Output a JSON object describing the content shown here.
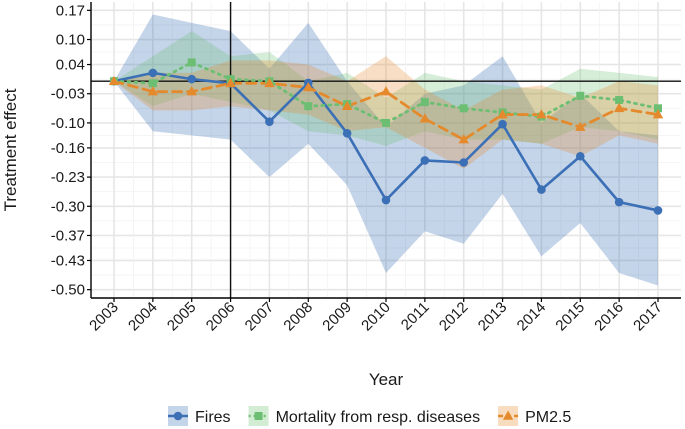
{
  "chart_data": {
    "type": "line",
    "title": "",
    "xlabel": "Year",
    "ylabel": "Treatment effect",
    "categories": [
      "2003",
      "2004",
      "2005",
      "2006",
      "2007",
      "2008",
      "2009",
      "2010",
      "2011",
      "2012",
      "2013",
      "2014",
      "2015",
      "2016",
      "2017"
    ],
    "yticks": [
      "0.17",
      "0.10",
      "0.04",
      "-0.03",
      "-0.10",
      "-0.16",
      "-0.23",
      "-0.30",
      "-0.37",
      "-0.43",
      "-0.50"
    ],
    "ylim": [
      -0.52,
      0.19
    ],
    "reference_hline": 0.0,
    "reference_vline": "2006",
    "grid": true,
    "legend_position": "bottom",
    "series": [
      {
        "name": "Fires",
        "color": "#3b6fb6",
        "line_style": "solid",
        "marker": "circle",
        "values": [
          0.0,
          0.02,
          0.005,
          -0.005,
          -0.097,
          -0.004,
          -0.125,
          -0.285,
          -0.19,
          -0.195,
          -0.103,
          -0.26,
          -0.18,
          -0.29,
          -0.31
        ],
        "ci_lower": [
          0.0,
          -0.12,
          -0.13,
          -0.14,
          -0.23,
          -0.15,
          -0.25,
          -0.46,
          -0.36,
          -0.39,
          -0.27,
          -0.42,
          -0.34,
          -0.46,
          -0.49
        ],
        "ci_upper": [
          0.0,
          0.16,
          0.14,
          0.12,
          0.03,
          0.14,
          0.0,
          -0.11,
          -0.03,
          -0.01,
          0.06,
          -0.1,
          -0.03,
          -0.12,
          -0.13
        ]
      },
      {
        "name": "Mortality from resp. diseases",
        "color": "#6cbf72",
        "line_style": "dotted",
        "marker": "square",
        "values": [
          0.0,
          -0.005,
          0.045,
          0.005,
          0.0,
          -0.06,
          -0.055,
          -0.1,
          -0.05,
          -0.065,
          -0.075,
          -0.085,
          -0.035,
          -0.045,
          -0.065
        ],
        "ci_lower": [
          0.0,
          -0.06,
          -0.03,
          -0.05,
          -0.07,
          -0.12,
          -0.13,
          -0.155,
          -0.12,
          -0.14,
          -0.14,
          -0.15,
          -0.11,
          -0.12,
          -0.14
        ],
        "ci_upper": [
          0.0,
          0.06,
          0.12,
          0.06,
          0.07,
          0.0,
          0.02,
          -0.04,
          0.02,
          0.0,
          -0.01,
          -0.02,
          0.03,
          0.02,
          0.01
        ]
      },
      {
        "name": "PM2.5",
        "color": "#e58a2c",
        "line_style": "dashed",
        "marker": "triangle",
        "values": [
          0.0,
          -0.025,
          -0.025,
          -0.005,
          -0.005,
          -0.015,
          -0.06,
          -0.025,
          -0.09,
          -0.14,
          -0.08,
          -0.08,
          -0.11,
          -0.065,
          -0.08
        ],
        "ci_lower": [
          0.0,
          -0.07,
          -0.07,
          -0.06,
          -0.07,
          -0.08,
          -0.12,
          -0.11,
          -0.16,
          -0.21,
          -0.14,
          -0.15,
          -0.18,
          -0.13,
          -0.15
        ],
        "ci_upper": [
          0.0,
          0.02,
          0.02,
          0.05,
          0.05,
          0.04,
          0.0,
          0.06,
          -0.02,
          -0.07,
          -0.02,
          -0.01,
          -0.04,
          0.0,
          -0.01
        ]
      }
    ]
  }
}
